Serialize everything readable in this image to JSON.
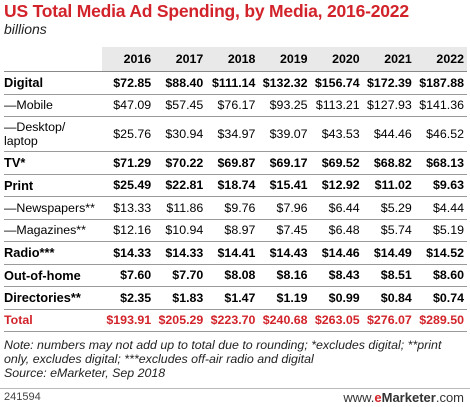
{
  "chart_data": {
    "type": "table",
    "title": "US Total Media Ad Spending, by Media, 2016-2022",
    "subtitle": "billions",
    "columns": [
      "2016",
      "2017",
      "2018",
      "2019",
      "2020",
      "2021",
      "2022"
    ],
    "rows": [
      {
        "label": "Digital",
        "level": "main",
        "values": [
          "$72.85",
          "$88.40",
          "$111.14",
          "$132.32",
          "$156.74",
          "$172.39",
          "$187.88"
        ]
      },
      {
        "label": "—Mobile",
        "level": "sub",
        "values": [
          "$47.09",
          "$57.45",
          "$76.17",
          "$93.25",
          "$113.21",
          "$127.93",
          "$141.36"
        ]
      },
      {
        "label": "—Desktop/ laptop",
        "level": "sub-tall",
        "values": [
          "$25.76",
          "$30.94",
          "$34.97",
          "$39.07",
          "$43.53",
          "$44.46",
          "$46.52"
        ]
      },
      {
        "label": "TV*",
        "level": "main",
        "values": [
          "$71.29",
          "$70.22",
          "$69.87",
          "$69.17",
          "$69.52",
          "$68.82",
          "$68.13"
        ]
      },
      {
        "label": "Print",
        "level": "main",
        "values": [
          "$25.49",
          "$22.81",
          "$18.74",
          "$15.41",
          "$12.92",
          "$11.02",
          "$9.63"
        ]
      },
      {
        "label": "—Newspapers**",
        "level": "sub",
        "values": [
          "$13.33",
          "$11.86",
          "$9.76",
          "$7.96",
          "$6.44",
          "$5.29",
          "$4.44"
        ]
      },
      {
        "label": "—Magazines**",
        "level": "sub",
        "values": [
          "$12.16",
          "$10.94",
          "$8.97",
          "$7.45",
          "$6.48",
          "$5.74",
          "$5.19"
        ]
      },
      {
        "label": "Radio***",
        "level": "main",
        "values": [
          "$14.33",
          "$14.33",
          "$14.41",
          "$14.43",
          "$14.46",
          "$14.49",
          "$14.52"
        ]
      },
      {
        "label": "Out-of-home",
        "level": "main",
        "values": [
          "$7.60",
          "$7.70",
          "$8.08",
          "$8.16",
          "$8.43",
          "$8.51",
          "$8.60"
        ]
      },
      {
        "label": "Directories**",
        "level": "main",
        "values": [
          "$2.35",
          "$1.83",
          "$1.47",
          "$1.19",
          "$0.99",
          "$0.84",
          "$0.74"
        ]
      },
      {
        "label": "Total",
        "level": "total",
        "values": [
          "$193.91",
          "$205.29",
          "$223.70",
          "$240.68",
          "$263.05",
          "$276.07",
          "$289.50"
        ]
      }
    ],
    "note": "Note: numbers may not add up to total due to rounding; *excludes digital; **print only, excludes digital; ***excludes off-air radio and digital",
    "source": "Source: eMarketer, Sep 2018"
  },
  "footer": {
    "id": "241594",
    "brand_www": "www.",
    "brand_e": "e",
    "brand_rest": "Marketer",
    "brand_com": ".com"
  },
  "colors": {
    "accent": "#d2232a",
    "header_bg": "#e9e9e9"
  }
}
